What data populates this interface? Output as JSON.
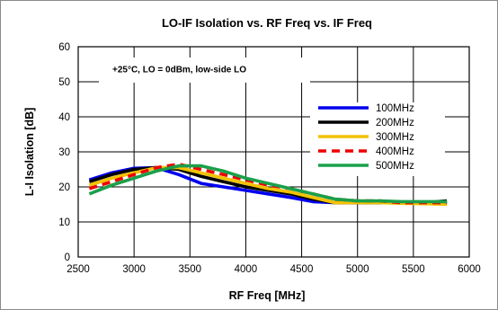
{
  "chart_data": {
    "type": "line",
    "title": "LO-IF Isolation vs. RF Freq vs. IF Freq",
    "annotation": "+25°C, LO = 0dBm, low-side LO",
    "xlabel": "RF Freq [MHz]",
    "ylabel": "L-I Isolation [dB]",
    "xlim": [
      2500,
      6000
    ],
    "ylim": [
      0,
      60
    ],
    "xticks": [
      "2500",
      "3000",
      "3500",
      "4000",
      "4500",
      "5000",
      "5500",
      "6000"
    ],
    "yticks": [
      "0",
      "10",
      "20",
      "30",
      "40",
      "50",
      "60"
    ],
    "grid": true,
    "legend_position": "right",
    "series": [
      {
        "name": "100MHz",
        "color": "#0000ee",
        "dash": "solid",
        "x": [
          2600,
          2800,
          3000,
          3200,
          3400,
          3600,
          3800,
          4000,
          4200,
          4400,
          4600,
          4800,
          5000,
          5200,
          5400,
          5600,
          5800
        ],
        "y": [
          22,
          24,
          25.3,
          25.5,
          23.5,
          21,
          20,
          19,
          18,
          17,
          15.8,
          15.5,
          15.5,
          15.5,
          15.5,
          15.5,
          15.5
        ]
      },
      {
        "name": "200MHz",
        "color": "#000000",
        "dash": "solid",
        "x": [
          2600,
          2800,
          3000,
          3200,
          3400,
          3600,
          3800,
          4000,
          4200,
          4400,
          4600,
          4800,
          5000,
          5200,
          5400,
          5600,
          5800
        ],
        "y": [
          21.5,
          23.5,
          25,
          25.5,
          25,
          23,
          21.5,
          20,
          19,
          18,
          16.5,
          15.5,
          15.5,
          15.5,
          15.5,
          15.5,
          16
        ]
      },
      {
        "name": "300MHz",
        "color": "#f2c200",
        "dash": "solid",
        "x": [
          2600,
          2800,
          3000,
          3200,
          3400,
          3600,
          3800,
          4000,
          4200,
          4400,
          4600,
          4800,
          5000,
          5200,
          5400,
          5600,
          5800
        ],
        "y": [
          20.5,
          22.5,
          24,
          25.5,
          25.5,
          24,
          22.5,
          21,
          19.5,
          18.5,
          17,
          15.5,
          15.5,
          15.5,
          15.3,
          15.2,
          15
        ]
      },
      {
        "name": "400MHz",
        "color": "#ee0000",
        "dash": "dashed",
        "x": [
          2600,
          2800,
          3000,
          3200,
          3400,
          3600,
          3800,
          4000,
          4200,
          4400,
          4600,
          4800,
          5000,
          5200,
          5400,
          5600,
          5800
        ],
        "y": [
          19.5,
          21.5,
          23.5,
          25.5,
          26.5,
          25,
          23.5,
          22,
          20.5,
          19.5,
          18,
          16.5,
          16,
          16,
          15.5,
          15.5,
          15.5
        ]
      },
      {
        "name": "500MHz",
        "color": "#1aa04a",
        "dash": "solid",
        "x": [
          2600,
          2800,
          3000,
          3200,
          3400,
          3600,
          3800,
          4000,
          4200,
          4400,
          4600,
          4800,
          5000,
          5200,
          5400,
          5600,
          5800
        ],
        "y": [
          18,
          20.5,
          22.5,
          24.5,
          26,
          26,
          24.5,
          22.5,
          21,
          19.5,
          18,
          16.5,
          16,
          16,
          15.8,
          15.8,
          15.8
        ]
      }
    ]
  }
}
